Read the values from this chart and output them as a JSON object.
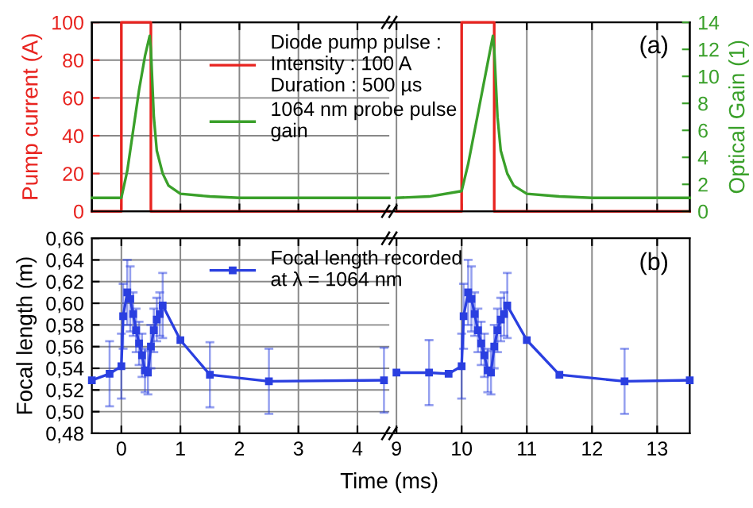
{
  "chart_data": [
    {
      "type": "line",
      "ylabel": "Pump current (A)",
      "legend": "top",
      "grid": true,
      "tick_labels": "y",
      "xlim": [
        -0.5,
        4.54
      ],
      "xticks": [
        0,
        1,
        2,
        3,
        4
      ],
      "ylim": [
        0,
        100
      ],
      "yticks": [
        0,
        20,
        40,
        60,
        80,
        100
      ],
      "y2lim": [
        0,
        14
      ],
      "series": [
        {
          "name": "Diode pump pulse :\nIntensity : 100 A\nDuration : 500 µs",
          "color": "#e8231f",
          "x": [
            -0.5,
            0,
            0,
            0.5,
            0.5,
            4.54
          ],
          "values": [
            0,
            0,
            100,
            100,
            0,
            0
          ]
        },
        {
          "name": "1064 nm probe pulse\ngain",
          "color": "#3aa02a",
          "axis": "y2",
          "x": [
            -0.5,
            0,
            0.1,
            0.2,
            0.3,
            0.4,
            0.48,
            0.5,
            0.55,
            0.6,
            0.7,
            0.8,
            1.0,
            1.5,
            2,
            4.54
          ],
          "values": [
            1,
            1,
            3,
            6,
            9,
            11.5,
            13,
            12,
            7,
            4.5,
            2.8,
            1.9,
            1.3,
            1.1,
            1,
            1
          ]
        }
      ]
    },
    {
      "type": "line",
      "y2label": "Optical Gain (1)",
      "annotations": [
        "(a)"
      ],
      "grid": true,
      "tick_labels": "y",
      "xlim": [
        8.89,
        13.5
      ],
      "xticks": [
        9,
        10,
        11,
        12,
        13
      ],
      "ylim": [
        0,
        100
      ],
      "y2lim": [
        0,
        14
      ],
      "y2ticks": [
        0,
        2,
        4,
        6,
        8,
        10,
        12,
        14
      ],
      "series": [
        {
          "color": "#e8231f",
          "x": [
            9.0,
            10,
            10,
            10.5,
            10.5,
            13.5
          ],
          "values": [
            0,
            0,
            100,
            100,
            0,
            0
          ]
        },
        {
          "color": "#3aa02a",
          "axis": "y2",
          "x": [
            9.0,
            9.5,
            10,
            10.1,
            10.2,
            10.3,
            10.4,
            10.48,
            10.5,
            10.55,
            10.6,
            10.7,
            10.8,
            11,
            11.5,
            12,
            13.5
          ],
          "values": [
            1,
            1.1,
            1.5,
            3.5,
            6,
            8.5,
            11,
            13,
            12,
            7,
            4.5,
            2.8,
            1.9,
            1.3,
            1.1,
            1,
            1
          ]
        }
      ]
    },
    {
      "type": "line",
      "xlabel": "Time (ms)",
      "ylabel": "Focal length (m)",
      "legend": "top",
      "grid": true,
      "marker": "square",
      "xlim": [
        -0.5,
        4.54
      ],
      "xticks": [
        0,
        1,
        2,
        3,
        4
      ],
      "ylim": [
        0.48,
        0.66
      ],
      "yticks": [
        {
          "value": 0.48,
          "label": "0,48"
        },
        {
          "value": 0.5,
          "label": "0,50"
        },
        {
          "value": 0.52,
          "label": "0,52"
        },
        {
          "value": 0.54,
          "label": "0,54"
        },
        {
          "value": 0.56,
          "label": "0,56"
        },
        {
          "value": 0.58,
          "label": "0,58"
        },
        {
          "value": 0.6,
          "label": "0,60"
        },
        {
          "value": 0.62,
          "label": "0,62"
        },
        {
          "value": 0.64,
          "label": "0,64"
        },
        {
          "value": 0.66,
          "label": "0,66"
        }
      ],
      "series": [
        {
          "name": "Focal length recorded\nat λ = 1064 nm",
          "color": "#2a3fe0",
          "x": [
            -0.5,
            -0.2,
            0,
            0.03,
            0.1,
            0.15,
            0.2,
            0.25,
            0.3,
            0.35,
            0.4,
            0.45,
            0.5,
            0.55,
            0.6,
            0.65,
            0.7,
            1.0,
            1.5,
            2.5,
            4.45
          ],
          "values": [
            0.529,
            0.535,
            0.542,
            0.588,
            0.61,
            0.604,
            0.59,
            0.575,
            0.563,
            0.552,
            0.538,
            0.536,
            0.56,
            0.575,
            0.585,
            0.59,
            0.598,
            0.566,
            0.534,
            0.528,
            0.529
          ],
          "errors": [
            null,
            0.03,
            0.03,
            0.03,
            0.03,
            0.03,
            0.02,
            0.02,
            0.02,
            0.02,
            0.02,
            0.02,
            0.02,
            0.02,
            0.02,
            0.02,
            0.03,
            null,
            0.03,
            0.03,
            0.03
          ]
        }
      ]
    },
    {
      "type": "line",
      "annotations": [
        "(b)"
      ],
      "grid": true,
      "marker": "square",
      "tick_labels": "x",
      "xlim": [
        8.89,
        13.5
      ],
      "xticks": [
        9,
        10,
        11,
        12,
        13
      ],
      "ylim": [
        0.48,
        0.66
      ],
      "series": [
        {
          "color": "#2a3fe0",
          "x": [
            9.0,
            9.5,
            9.8,
            10.0,
            10.03,
            10.1,
            10.15,
            10.2,
            10.25,
            10.3,
            10.35,
            10.4,
            10.45,
            10.5,
            10.55,
            10.6,
            10.65,
            10.7,
            11.0,
            11.5,
            12.5,
            13.5
          ],
          "values": [
            0.536,
            0.536,
            0.535,
            0.542,
            0.588,
            0.61,
            0.604,
            0.59,
            0.575,
            0.563,
            0.552,
            0.538,
            0.536,
            0.56,
            0.575,
            0.585,
            0.59,
            0.598,
            0.566,
            0.534,
            0.528,
            0.529
          ],
          "errors": [
            null,
            0.03,
            null,
            0.03,
            0.03,
            0.03,
            0.03,
            0.02,
            0.02,
            0.02,
            0.02,
            0.02,
            0.02,
            0.02,
            0.02,
            0.02,
            0.02,
            0.03,
            null,
            null,
            0.03,
            null
          ]
        }
      ]
    }
  ]
}
